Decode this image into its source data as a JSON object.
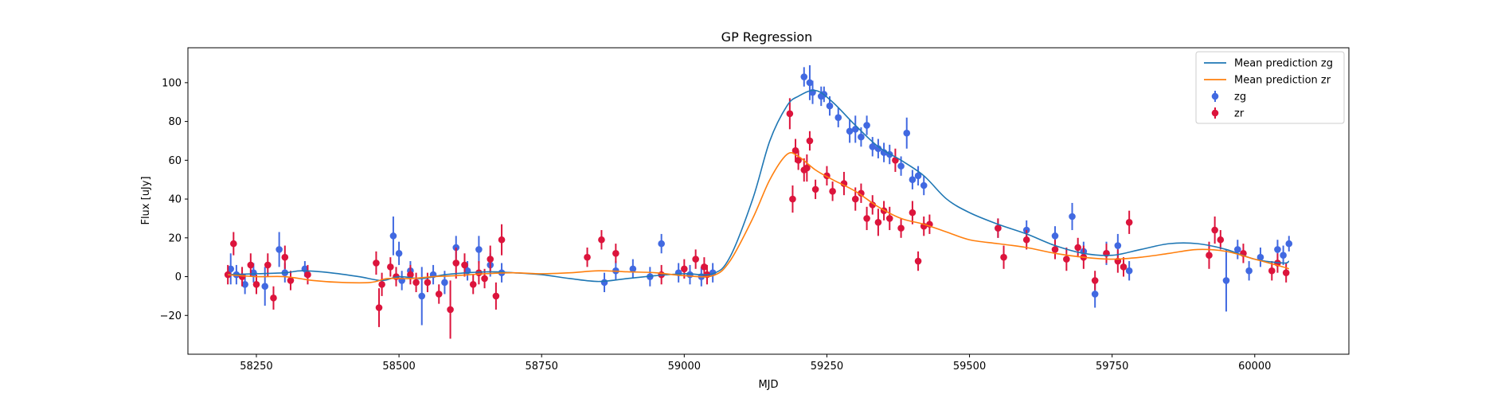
{
  "chart_data": {
    "type": "scatter",
    "title": "GP Regression",
    "xlabel": "MJD",
    "ylabel": "Flux [uJy]",
    "xlim": [
      58130,
      60165
    ],
    "ylim": [
      -40,
      118
    ],
    "xticks": [
      58250,
      58500,
      58750,
      59000,
      59250,
      59500,
      59750,
      60000
    ],
    "yticks": [
      -20,
      0,
      20,
      40,
      60,
      80,
      100
    ],
    "grid": false,
    "legend_position": "top-right",
    "colors": {
      "mean_zg": "#1f77b4",
      "mean_zr": "#ff7f0e",
      "obs_zg": "#4169e1",
      "obs_zr": "#dc143c"
    },
    "lines": [
      {
        "name": "Mean prediction zg",
        "color": "#1f77b4",
        "x": [
          58200,
          58250,
          58300,
          58330,
          58380,
          58430,
          58470,
          58500,
          58540,
          58580,
          58620,
          58660,
          58700,
          58750,
          58800,
          58850,
          58900,
          58950,
          59000,
          59050,
          59080,
          59120,
          59150,
          59180,
          59200,
          59230,
          59260,
          59300,
          59340,
          59380,
          59420,
          59460,
          59500,
          59550,
          59600,
          59650,
          59700,
          59750,
          59800,
          59850,
          59900,
          59950,
          60000,
          60050,
          60060
        ],
        "y": [
          1,
          1.5,
          2,
          3,
          2,
          0,
          -2,
          0,
          -1,
          1,
          2,
          2.5,
          2,
          1,
          -1,
          -2.5,
          -1,
          0.5,
          1.5,
          1.5,
          10,
          40,
          70,
          88,
          93,
          96,
          90,
          78,
          67,
          60,
          52,
          40,
          33,
          27,
          22,
          16,
          12,
          11,
          14,
          17,
          17,
          14,
          9,
          7,
          8
        ]
      },
      {
        "name": "Mean prediction zr",
        "color": "#ff7f0e",
        "x": [
          58200,
          58250,
          58300,
          58350,
          58400,
          58450,
          58480,
          58520,
          58560,
          58600,
          58650,
          58700,
          58750,
          58800,
          58850,
          58900,
          58950,
          59000,
          59050,
          59080,
          59120,
          59150,
          59180,
          59200,
          59230,
          59260,
          59300,
          59340,
          59380,
          59420,
          59460,
          59500,
          59550,
          59600,
          59650,
          59700,
          59750,
          59800,
          59850,
          59900,
          59950,
          60000,
          60050,
          60060
        ],
        "y": [
          1,
          0,
          0,
          -2,
          -3,
          -3,
          -1,
          -1,
          0,
          0.5,
          1.5,
          2,
          1.5,
          2,
          3,
          2.5,
          2,
          0.5,
          0.5,
          8,
          30,
          50,
          63,
          62,
          55,
          50,
          44,
          36,
          30,
          27,
          23,
          19,
          17,
          15,
          12,
          10,
          9,
          10,
          12,
          14,
          13,
          9,
          5,
          4
        ]
      }
    ],
    "series": [
      {
        "name": "zg",
        "color": "#4169e1",
        "x": [
          58205,
          58215,
          58230,
          58245,
          58265,
          58290,
          58300,
          58335,
          58490,
          58500,
          58505,
          58520,
          58540,
          58560,
          58580,
          58600,
          58620,
          58640,
          58660,
          58680,
          58860,
          58880,
          58910,
          58940,
          58960,
          58990,
          59010,
          59030,
          59050,
          59210,
          59220,
          59225,
          59240,
          59245,
          59255,
          59270,
          59290,
          59300,
          59310,
          59320,
          59330,
          59340,
          59350,
          59360,
          59380,
          59390,
          59400,
          59410,
          59420,
          59550,
          59600,
          59650,
          59680,
          59700,
          59720,
          59740,
          59760,
          59780,
          59950,
          59970,
          59990,
          60010,
          60040,
          60050,
          60060
        ],
        "y": [
          4,
          1,
          -4,
          2,
          -5,
          14,
          2,
          4,
          21,
          12,
          -2,
          3,
          -10,
          1,
          -3,
          15,
          3,
          14,
          6,
          2,
          -3,
          3,
          4,
          0,
          17,
          2,
          1,
          0,
          2,
          103,
          100,
          95,
          93,
          94,
          88,
          82,
          75,
          76,
          72,
          78,
          67,
          66,
          64,
          63,
          57,
          74,
          50,
          52,
          47,
          25,
          24,
          21,
          31,
          13,
          -9,
          12,
          16,
          3,
          -2,
          14,
          3,
          10,
          14,
          11,
          17
        ],
        "yerr": [
          8,
          5,
          5,
          5,
          10,
          9,
          5,
          4,
          10,
          6,
          5,
          5,
          15,
          5,
          6,
          6,
          5,
          7,
          6,
          5,
          5,
          5,
          5,
          5,
          5,
          5,
          5,
          5,
          5,
          5,
          9,
          6,
          5,
          4,
          5,
          5,
          6,
          7,
          5,
          5,
          5,
          5,
          5,
          5,
          5,
          8,
          5,
          5,
          5,
          5,
          5,
          5,
          7,
          5,
          7,
          6,
          6,
          5,
          16,
          5,
          5,
          5,
          5,
          5,
          4
        ]
      },
      {
        "name": "zr",
        "color": "#dc143c",
        "x": [
          58200,
          58210,
          58225,
          58240,
          58250,
          58270,
          58280,
          58300,
          58310,
          58340,
          58460,
          58465,
          58470,
          58485,
          58495,
          58520,
          58530,
          58550,
          58570,
          58590,
          58600,
          58615,
          58630,
          58640,
          58650,
          58660,
          58670,
          58680,
          58830,
          58855,
          58880,
          58960,
          59000,
          59020,
          59035,
          59040,
          59185,
          59190,
          59195,
          59200,
          59210,
          59215,
          59220,
          59230,
          59250,
          59260,
          59280,
          59300,
          59310,
          59320,
          59330,
          59340,
          59350,
          59360,
          59370,
          59380,
          59400,
          59410,
          59420,
          59430,
          59550,
          59560,
          59600,
          59650,
          59670,
          59690,
          59700,
          59720,
          59740,
          59760,
          59770,
          59780,
          59920,
          59930,
          59940,
          59980,
          60030,
          60040,
          60055
        ],
        "y": [
          1,
          17,
          0,
          6,
          -4,
          6,
          -11,
          10,
          -2,
          1,
          7,
          -16,
          -4,
          5,
          0,
          1,
          -3,
          -3,
          -9,
          -17,
          7,
          6,
          -4,
          2,
          -1,
          9,
          -10,
          19,
          10,
          19,
          12,
          1,
          4,
          9,
          5,
          1,
          84,
          40,
          65,
          60,
          55,
          56,
          70,
          45,
          52,
          44,
          48,
          40,
          43,
          30,
          37,
          28,
          34,
          30,
          60,
          25,
          33,
          8,
          26,
          27,
          25,
          10,
          19,
          14,
          9,
          15,
          10,
          -2,
          12,
          8,
          5,
          28,
          11,
          24,
          19,
          12,
          3,
          7,
          2
        ],
        "yerr": [
          5,
          6,
          5,
          6,
          5,
          6,
          6,
          6,
          5,
          5,
          6,
          10,
          6,
          5,
          5,
          5,
          5,
          5,
          5,
          15,
          8,
          6,
          5,
          6,
          5,
          7,
          7,
          8,
          5,
          5,
          5,
          5,
          5,
          5,
          5,
          5,
          8,
          7,
          6,
          5,
          6,
          7,
          5,
          5,
          5,
          5,
          6,
          6,
          5,
          6,
          5,
          7,
          5,
          6,
          6,
          5,
          6,
          5,
          5,
          5,
          5,
          6,
          5,
          5,
          6,
          5,
          6,
          5,
          5,
          6,
          5,
          6,
          7,
          7,
          5,
          5,
          5,
          5,
          5
        ]
      }
    ]
  }
}
